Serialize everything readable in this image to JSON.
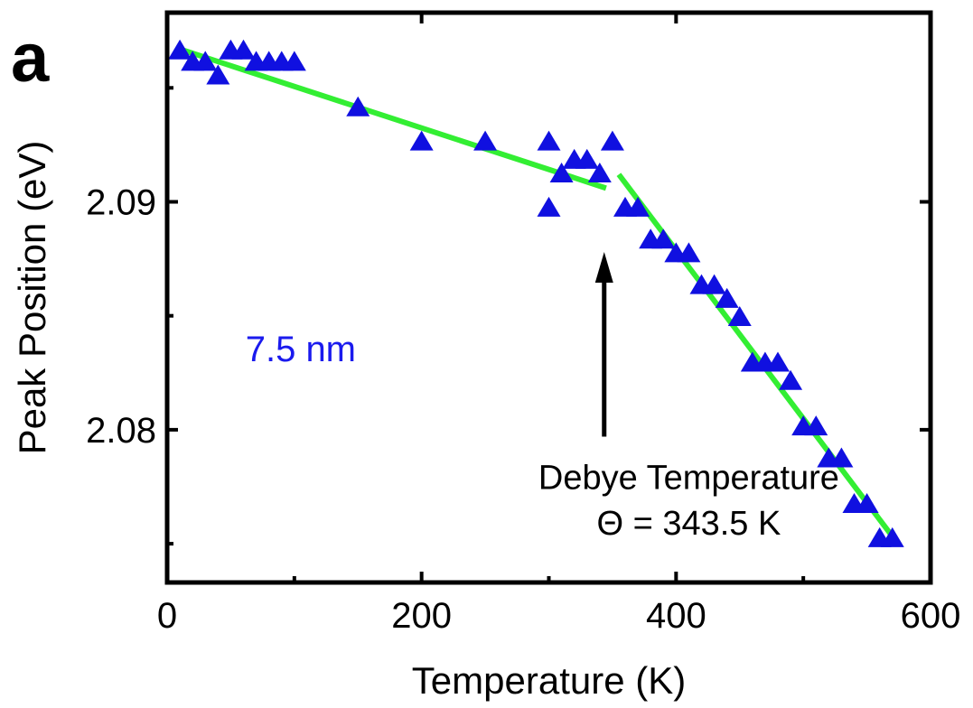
{
  "panel_label": "a",
  "chart_data": {
    "type": "scatter",
    "xlabel": "Temperature (K)",
    "ylabel": "Peak Position (eV)",
    "xlim": [
      0,
      600
    ],
    "ylim": [
      2.0733,
      2.0983
    ],
    "x_ticks": [
      0,
      200,
      400,
      600
    ],
    "x_tick_labels": [
      "0",
      "200",
      "400",
      "600"
    ],
    "y_ticks": [
      2.08,
      2.09
    ],
    "y_tick_labels": [
      "2.08",
      "2.09"
    ],
    "y_minor_ticks": [
      2.075,
      2.085,
      2.095
    ],
    "grid": false,
    "legend": "none",
    "series": [
      {
        "marker": "triangle-up",
        "color": "#1010e0",
        "x": [
          10,
          20,
          30,
          40,
          50,
          60,
          70,
          80,
          90,
          100,
          150,
          200,
          250,
          300,
          300,
          310,
          320,
          330,
          340,
          350,
          360,
          370,
          380,
          390,
          400,
          410,
          420,
          430,
          440,
          450,
          460,
          470,
          480,
          490,
          500,
          510,
          520,
          530,
          540,
          550,
          560,
          570
        ],
        "y": [
          2.0966,
          2.0961,
          2.0961,
          2.0955,
          2.0966,
          2.0966,
          2.0961,
          2.0961,
          2.0961,
          2.0961,
          2.0941,
          2.0926,
          2.0926,
          2.0926,
          2.0897,
          2.0912,
          2.0918,
          2.0918,
          2.0912,
          2.0926,
          2.0897,
          2.0897,
          2.0883,
          2.0883,
          2.0877,
          2.0877,
          2.0863,
          2.0863,
          2.0857,
          2.0849,
          2.0829,
          2.0829,
          2.0829,
          2.0821,
          2.0801,
          2.0801,
          2.0787,
          2.0787,
          2.0767,
          2.0767,
          2.0752,
          2.0752
        ]
      }
    ],
    "fit_lines": [
      {
        "color": "#33ee33",
        "x": [
          10,
          345
        ],
        "y": [
          2.0967,
          2.0906
        ]
      },
      {
        "color": "#33ee33",
        "x": [
          355,
          573
        ],
        "y": [
          2.0912,
          2.0751
        ]
      }
    ],
    "annotations": {
      "size_label": {
        "text": "7.5 nm",
        "x": 105,
        "y": 2.083,
        "color": "#1a1aee"
      },
      "arrow": {
        "x": 343.5,
        "y_from": 2.0797,
        "y_to": 2.0878
      },
      "debye_line1": {
        "text": "Debye Temperature",
        "x": 410,
        "y": 2.0774
      },
      "debye_line2": {
        "text": "Θ = 343.5 K",
        "x": 410,
        "y": 2.0754
      }
    }
  }
}
